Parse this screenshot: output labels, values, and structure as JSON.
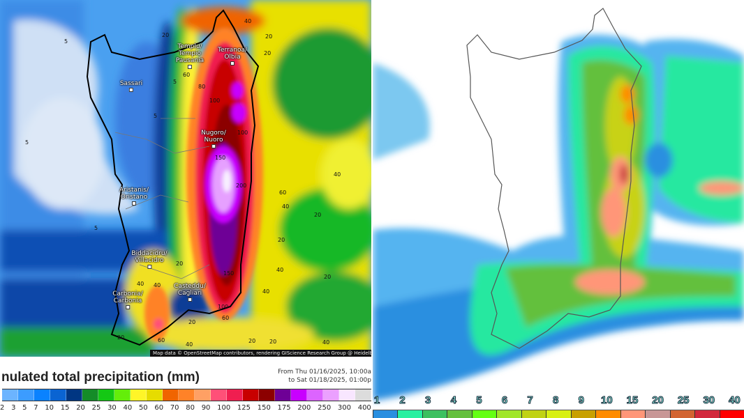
{
  "left_map": {
    "cities": [
      {
        "name": "Templu/\nTempio\nPausania"
      },
      {
        "name": "Terranoa/\nOlbia"
      },
      {
        "name": "Sassari"
      },
      {
        "name": "Nugoro/\nNuoro"
      },
      {
        "name": "Aristanis/\nOristano"
      },
      {
        "name": "Biddacidru/\nVillacidro"
      },
      {
        "name": "Carbonia/\nCarbonia"
      },
      {
        "name": "Casteddu/\nCagliari"
      }
    ],
    "contour_labels": [
      "5",
      "20",
      "40",
      "20",
      "20",
      "60",
      "80",
      "100",
      "100",
      "150",
      "200",
      "40",
      "60",
      "40",
      "20",
      "20",
      "40",
      "20",
      "40",
      "5",
      "5",
      "5",
      "5",
      "20",
      "40",
      "40",
      "20",
      "60",
      "40",
      "20",
      "150",
      "100",
      "60",
      "20",
      "40",
      "20"
    ],
    "attribution": "Map data © OpenStreetMap contributors, rendering GIScience Research Group @ Heidelberg",
    "legend": {
      "title": "nulated total precipitation (mm)",
      "date_from": "From Thu 01/16/2025, 10:00a",
      "date_to": "to Sat 01/18/2025, 01:00p",
      "ticks": [
        "2",
        "3",
        "5",
        "7",
        "10",
        "15",
        "20",
        "25",
        "30",
        "40",
        "50",
        "60",
        "70",
        "80",
        "90",
        "100",
        "125",
        "150",
        "175",
        "200",
        "250",
        "300",
        "400"
      ],
      "colors": [
        "#6cb4ff",
        "#3c9cff",
        "#0a82ff",
        "#0a64d2",
        "#003682",
        "#148c28",
        "#14c814",
        "#64ee0a",
        "#fff528",
        "#e6dc00",
        "#f06400",
        "#ff8228",
        "#ffa064",
        "#ff5078",
        "#f01e50",
        "#c80000",
        "#8c0000",
        "#6e0096",
        "#c800ff",
        "#dc64ff",
        "#eba0ff",
        "#f8e6ff",
        "#dcdcdc"
      ]
    }
  },
  "right_map": {
    "legend": {
      "ticks": [
        "1",
        "2",
        "3",
        "4",
        "5",
        "6",
        "7",
        "8",
        "9",
        "10",
        "15",
        "20",
        "25",
        "30",
        "40"
      ],
      "colors": [
        "#2a8fe0",
        "#28f0a0",
        "#3cc060",
        "#64c03c",
        "#64ff14",
        "#a0e628",
        "#c0d214",
        "#d8f014",
        "#c8a000",
        "#ff8c00",
        "#ff9678",
        "#c89696",
        "#d26432",
        "#d2283c",
        "#ff0000"
      ]
    }
  }
}
